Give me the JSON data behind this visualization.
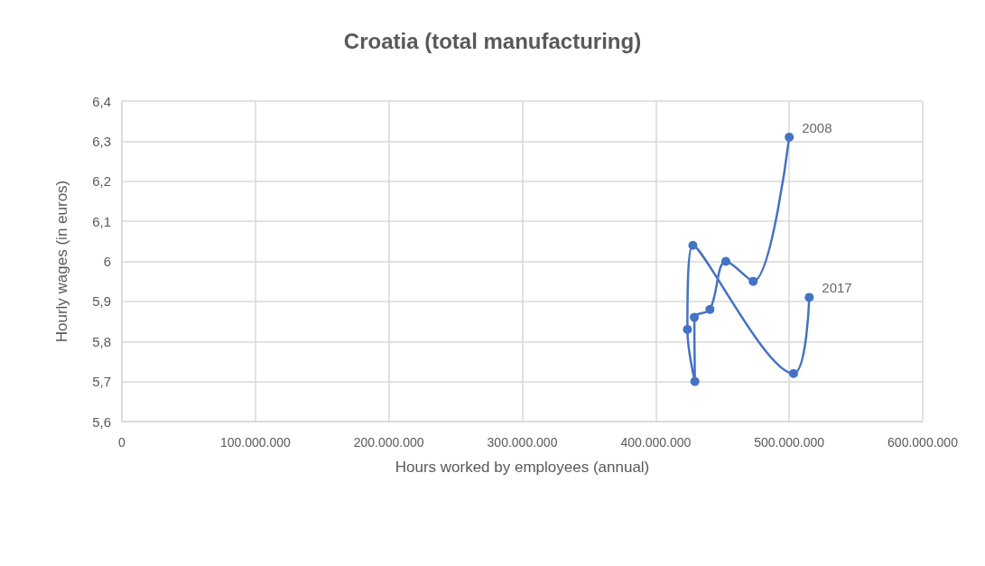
{
  "chart_data": {
    "type": "line",
    "title": "Croatia (total manufacturing)",
    "xlabel": "Hours worked by employees (annual)",
    "ylabel": "Hourly wages (in euros)",
    "x": [
      500000000,
      473000000,
      452500000,
      440600000,
      428900000,
      429300000,
      423700000,
      427800000,
      503200000,
      515000000
    ],
    "series": [
      {
        "color": "#4472c4",
        "values": [
          6.31,
          5.95,
          6.0,
          5.88,
          5.86,
          5.7,
          5.83,
          6.04,
          5.72,
          5.91
        ]
      }
    ],
    "xlim": [
      0,
      600000000
    ],
    "xticks": [
      {
        "value": 0,
        "label": "0"
      },
      {
        "value": 100000000,
        "label": "100.000.000"
      },
      {
        "value": 200000000,
        "label": "200.000.000"
      },
      {
        "value": 300000000,
        "label": "300.000.000"
      },
      {
        "value": 400000000,
        "label": "400.000.000"
      },
      {
        "value": 500000000,
        "label": "500.000.000"
      },
      {
        "value": 600000000,
        "label": "600.000.000"
      }
    ],
    "ylim": [
      5.6,
      6.4
    ],
    "yticks": [
      {
        "value": 5.6,
        "label": "5,6"
      },
      {
        "value": 5.7,
        "label": "5,7"
      },
      {
        "value": 5.8,
        "label": "5,8"
      },
      {
        "value": 5.9,
        "label": "5,9"
      },
      {
        "value": 6,
        "label": "6"
      },
      {
        "value": 6.1,
        "label": "6,1"
      },
      {
        "value": 6.2,
        "label": "6,2"
      },
      {
        "value": 6.3,
        "label": "6,3"
      },
      {
        "value": 6.4,
        "label": "6,4"
      }
    ],
    "annotations": [
      {
        "text": "2008",
        "x": 500000000,
        "y": 6.31
      },
      {
        "text": "2017",
        "x": 515000000,
        "y": 5.91
      }
    ],
    "grid": true,
    "marker": "circle",
    "line_style": "solid"
  }
}
